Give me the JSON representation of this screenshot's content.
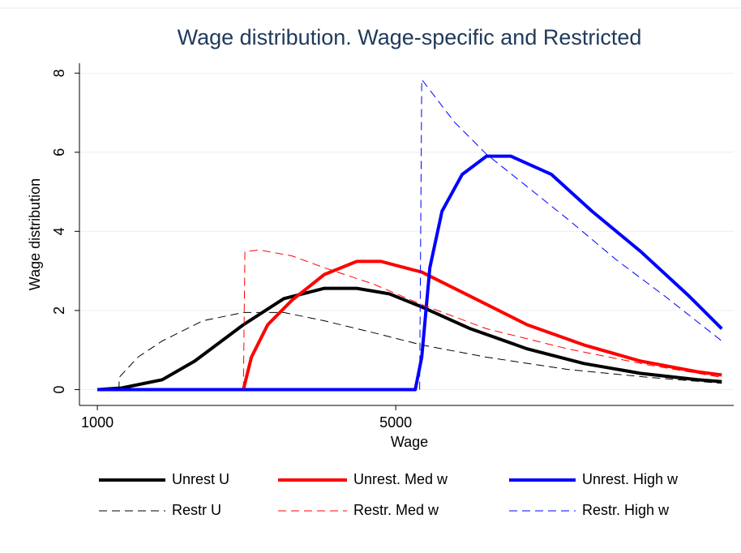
{
  "chart_data": {
    "type": "line",
    "title": "Wage distribution. Wage-specific and Restricted",
    "xlabel": "Wage",
    "ylabel": "Wage distribution",
    "xlim": [
      760,
      9530
    ],
    "xticks": [
      1000,
      5000
    ],
    "ylim": [
      -0.4,
      8.25
    ],
    "yticks": [
      0,
      2,
      4,
      6,
      8
    ],
    "grid": true,
    "series": [
      {
        "name": "Unrest U",
        "color": "#000000",
        "line_width": 4,
        "dashed": false,
        "x": [
          1000,
          1326,
          1870,
          2304,
          2957,
          3500,
          4043,
          4478,
          4913,
          5348,
          6000,
          6761,
          7522,
          8283,
          9043,
          9370
        ],
        "values": [
          0,
          0.04,
          0.25,
          0.72,
          1.64,
          2.3,
          2.56,
          2.56,
          2.42,
          2.09,
          1.54,
          1.03,
          0.66,
          0.41,
          0.25,
          0.2
        ]
      },
      {
        "name": "Unrest. Med w",
        "color": "#ff0000",
        "line_width": 4,
        "dashed": false,
        "x": [
          2957,
          3065,
          3283,
          3609,
          4043,
          4478,
          4804,
          5348,
          6000,
          6761,
          7522,
          8283,
          9043,
          9370
        ],
        "values": [
          0,
          0.82,
          1.64,
          2.26,
          2.91,
          3.24,
          3.24,
          2.97,
          2.36,
          1.64,
          1.13,
          0.72,
          0.45,
          0.37
        ]
      },
      {
        "name": "Unrest. High w",
        "color": "#0000ff",
        "line_width": 4,
        "dashed": false,
        "x": [
          1000,
          5261,
          5348,
          5457,
          5620,
          5891,
          6217,
          6543,
          7087,
          7630,
          8283,
          8935,
          9370
        ],
        "values": [
          0,
          0,
          0.82,
          3.08,
          4.51,
          5.44,
          5.9,
          5.9,
          5.44,
          4.51,
          3.49,
          2.36,
          1.54
        ]
      },
      {
        "name": "Restr U",
        "color": "#000000",
        "line_width": 1,
        "dashed": true,
        "x": [
          1290,
          1293,
          1543,
          1870,
          2413,
          2957,
          3500,
          4043,
          4696,
          5348,
          6217,
          7304,
          8391,
          9370
        ],
        "values": [
          0,
          0.31,
          0.82,
          1.23,
          1.74,
          1.95,
          1.95,
          1.74,
          1.44,
          1.13,
          0.82,
          0.51,
          0.31,
          0.16
        ]
      },
      {
        "name": "Restr. Med w",
        "color": "#ff0000",
        "line_width": 1,
        "dashed": true,
        "x": [
          2957,
          2978,
          3174,
          3609,
          4043,
          4696,
          5348,
          6217,
          7304,
          8391,
          9370
        ],
        "values": [
          0,
          3.49,
          3.53,
          3.38,
          3.08,
          2.67,
          2.15,
          1.54,
          1.03,
          0.62,
          0.31
        ]
      },
      {
        "name": "Restr. High w",
        "color": "#0000ff",
        "line_width": 1,
        "dashed": true,
        "x": [
          5320,
          5348,
          5783,
          6217,
          6761,
          7304,
          7957,
          8609,
          9370
        ],
        "values": [
          0,
          7.84,
          6.77,
          5.95,
          5.13,
          4.31,
          3.28,
          2.36,
          1.23
        ]
      }
    ]
  }
}
